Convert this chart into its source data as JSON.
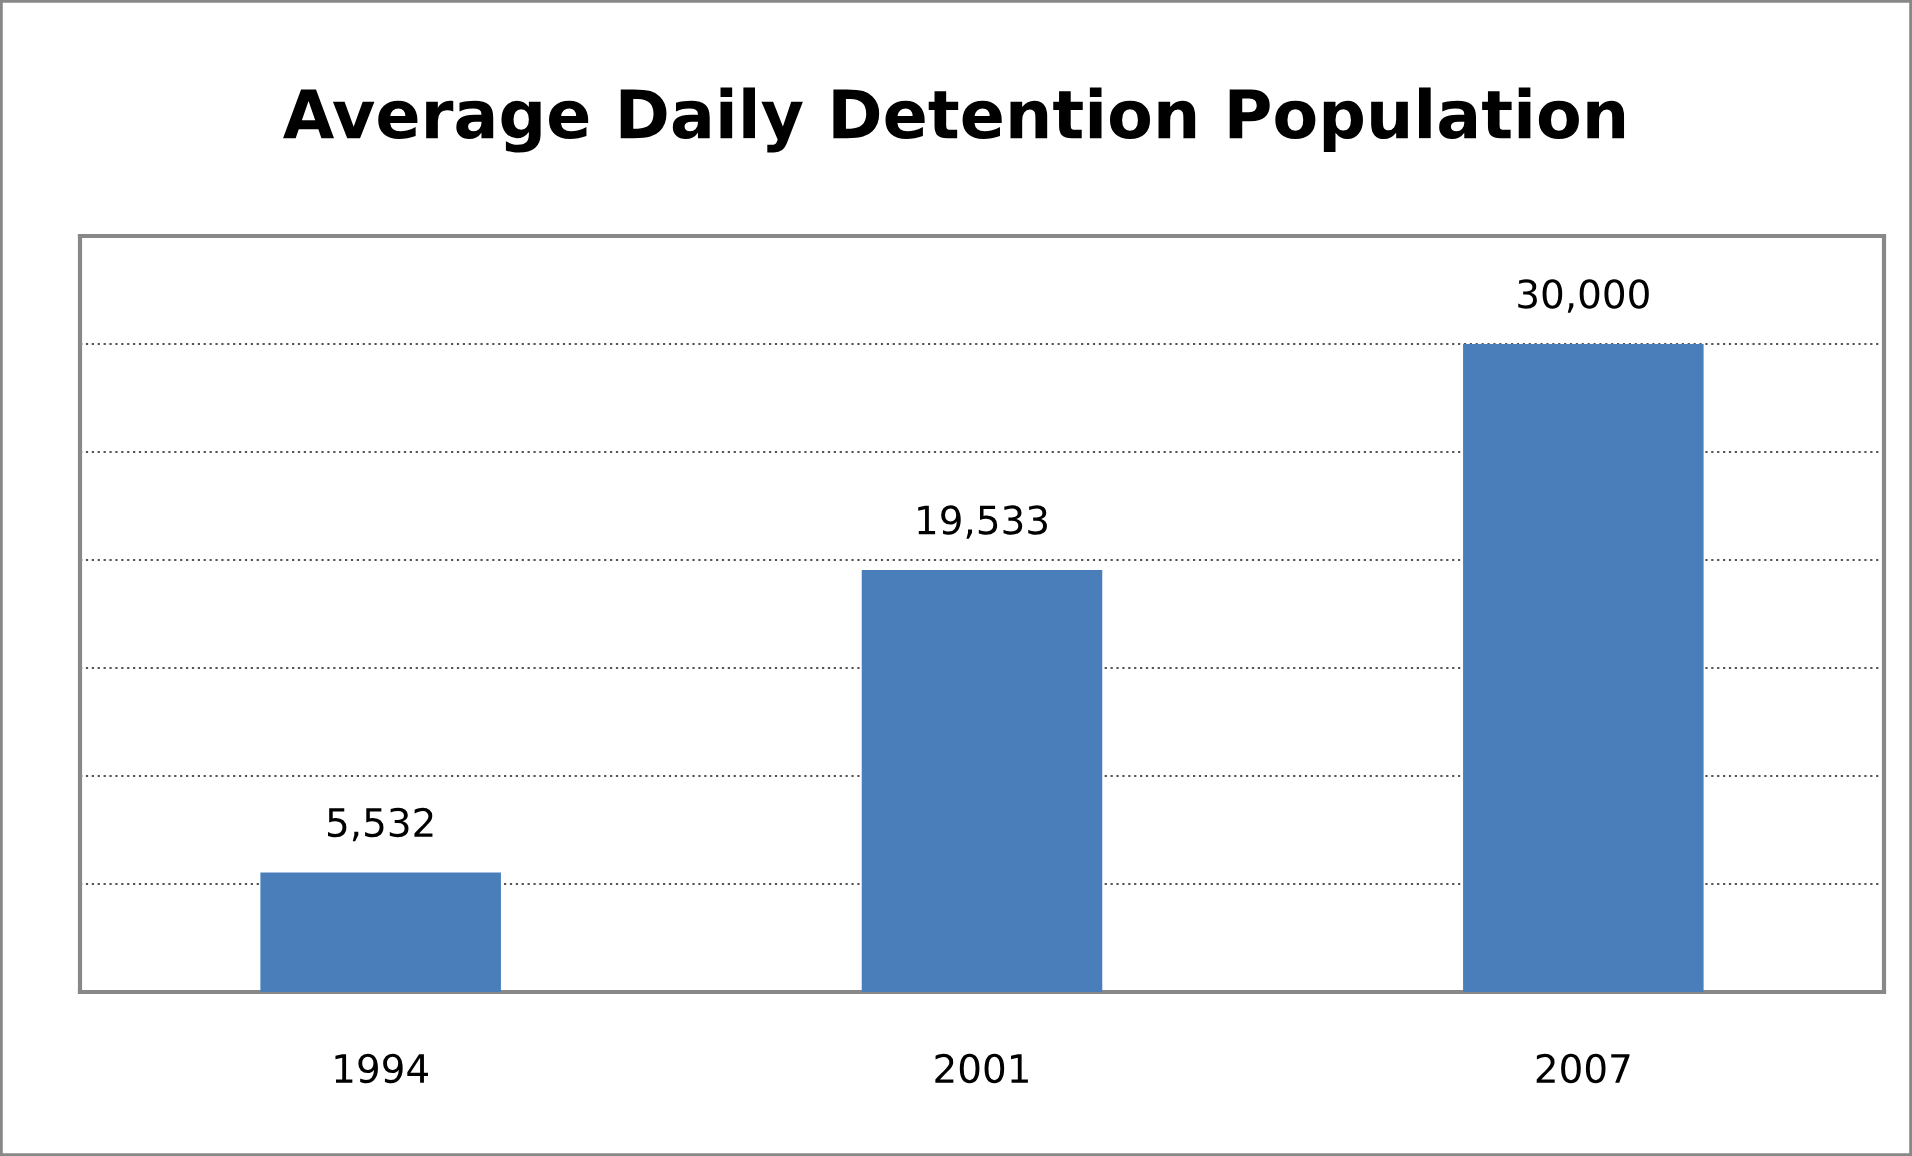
{
  "chart_data": {
    "type": "bar",
    "title": "Average Daily Detention Population",
    "categories": [
      "1994",
      "2001",
      "2007"
    ],
    "values": [
      5532,
      19533,
      30000
    ],
    "value_labels": [
      "5,532",
      "19,533",
      "30,000"
    ],
    "color": "#4a7ebb",
    "ylim": [
      0,
      35000
    ],
    "yticks": [
      {
        "value": 0,
        "label": null
      },
      {
        "value": 5000,
        "label": null
      },
      {
        "value": 10000,
        "label": null
      },
      {
        "value": 15000,
        "label": null
      },
      {
        "value": 20000,
        "label": null
      },
      {
        "value": 25000,
        "label": null
      },
      {
        "value": 30000,
        "label": null
      },
      {
        "value": 35000,
        "label": null
      }
    ],
    "grid": "y",
    "tick_labels": "x",
    "legend": false
  }
}
